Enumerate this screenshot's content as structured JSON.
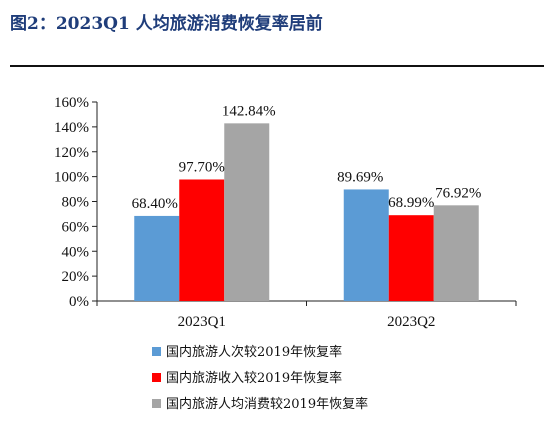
{
  "header": {
    "title": "图2：2023Q1 人均旅游消费恢复率居前"
  },
  "chart_data": {
    "type": "bar",
    "title": "",
    "xlabel": "",
    "ylabel": "",
    "categories": [
      "2023Q1",
      "2023Q2"
    ],
    "ylim": [
      0,
      160
    ],
    "yticks": [
      0,
      20,
      40,
      60,
      80,
      100,
      120,
      140,
      160
    ],
    "ytick_labels": [
      "0%",
      "20%",
      "40%",
      "60%",
      "80%",
      "100%",
      "120%",
      "140%",
      "160%"
    ],
    "grid": false,
    "legend_position": "bottom",
    "series": [
      {
        "name": "国内旅游人次较2019年恢复率",
        "color": "#5b9bd5",
        "values": [
          68.4,
          89.69
        ],
        "labels": [
          "68.40%",
          "89.69%"
        ]
      },
      {
        "name": "国内旅游收入较2019年恢复率",
        "color": "#ff0000",
        "values": [
          97.7,
          68.99
        ],
        "labels": [
          "97.70%",
          "68.99%"
        ]
      },
      {
        "name": "国内旅游人均消费较2019年恢复率",
        "color": "#a5a5a5",
        "values": [
          142.84,
          76.92
        ],
        "labels": [
          "142.84%",
          "76.92%"
        ]
      }
    ]
  }
}
